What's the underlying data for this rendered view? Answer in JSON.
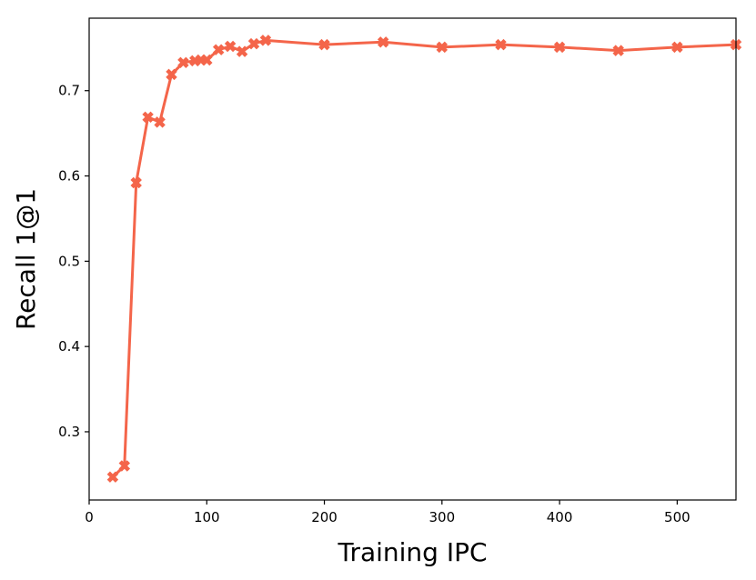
{
  "chart_data": {
    "type": "line",
    "title": "",
    "xlabel": "Training IPC",
    "ylabel": "Recall 1@1",
    "xlim": [
      0,
      550
    ],
    "ylim": [
      0.22,
      0.785
    ],
    "x_ticks": [
      0,
      100,
      200,
      300,
      400,
      500
    ],
    "y_ticks": [
      0.3,
      0.4,
      0.5,
      0.6,
      0.7
    ],
    "x_tick_labels": [
      "0",
      "100",
      "200",
      "300",
      "400",
      "500"
    ],
    "y_tick_labels": [
      "0.3",
      "0.4",
      "0.5",
      "0.6",
      "0.7"
    ],
    "grid": false,
    "legend": "none",
    "series": [
      {
        "color": "#f4654a",
        "marker": "X",
        "x": [
          20,
          30,
          40,
          50,
          60,
          70,
          80,
          90,
          95,
          100,
          110,
          120,
          130,
          140,
          150,
          200,
          250,
          300,
          350,
          400,
          450,
          500,
          550
        ],
        "y": [
          0.247,
          0.26,
          0.592,
          0.669,
          0.663,
          0.719,
          0.733,
          0.735,
          0.736,
          0.736,
          0.748,
          0.752,
          0.746,
          0.755,
          0.759,
          0.754,
          0.757,
          0.751,
          0.754,
          0.751,
          0.747,
          0.751,
          0.754
        ]
      }
    ]
  }
}
